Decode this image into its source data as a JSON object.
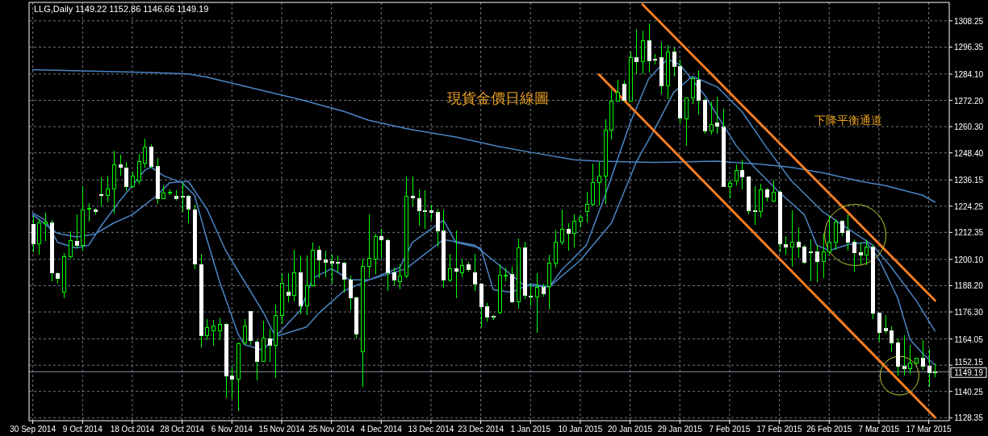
{
  "chart_data": {
    "type": "candlestick",
    "title": "LLG,Daily  1149.22 1152.86 1146.66 1149.19",
    "categories": [
      "30 Sep 2014",
      null,
      null,
      null,
      null,
      null,
      null,
      null,
      "9 Oct 2014",
      null,
      null,
      null,
      null,
      null,
      null,
      null,
      "18 Oct 2014",
      null,
      null,
      null,
      null,
      null,
      null,
      null,
      "28 Oct 2014",
      null,
      null,
      null,
      null,
      null,
      null,
      null,
      "6 Nov 2014",
      null,
      null,
      null,
      null,
      null,
      null,
      null,
      "15 Nov 2014",
      null,
      null,
      null,
      null,
      null,
      null,
      null,
      "25 Nov 2014",
      null,
      null,
      null,
      null,
      null,
      null,
      null,
      "4 Dec 2014",
      null,
      null,
      null,
      null,
      null,
      null,
      null,
      "13 Dec 2014",
      null,
      null,
      null,
      null,
      null,
      null,
      null,
      "23 Dec 2014",
      null,
      null,
      null,
      null,
      null,
      null,
      null,
      "1 Jan 2015",
      null,
      null,
      null,
      null,
      null,
      null,
      null,
      "10 Jan 2015",
      null,
      null,
      null,
      null,
      null,
      null,
      null,
      "20 Jan 2015",
      null,
      null,
      null,
      null,
      null,
      null,
      null,
      "29 Jan 2015",
      null,
      null,
      null,
      null,
      null,
      null,
      null,
      "7 Feb 2015",
      null,
      null,
      null,
      null,
      null,
      null,
      null,
      "17 Feb 2015",
      null,
      null,
      null,
      null,
      null,
      null,
      null,
      "26 Feb 2015",
      null,
      null,
      null,
      null,
      null,
      null,
      null,
      "7 Mar 2015",
      null,
      null,
      null,
      null,
      null,
      null,
      null,
      "17 Mar 2015",
      null
    ],
    "ohlc": [
      [
        1216.0,
        1219.8,
        1203.4,
        1207.2
      ],
      [
        1207.2,
        1218.5,
        1202.2,
        1216.6
      ],
      [
        1216.4,
        1221.4,
        1208.5,
        1216.9
      ],
      [
        1216.6,
        1217.9,
        1190.2,
        1194.0
      ],
      [
        1193.7,
        1194.2,
        1189.0,
        1191.5
      ],
      [
        1185.2,
        1203.1,
        1182.7,
        1201.3
      ],
      [
        1201.5,
        1212.9,
        1200.3,
        1208.5
      ],
      [
        1208.3,
        1220.4,
        1205.3,
        1206.6
      ],
      [
        1206.6,
        1233.2,
        1204.1,
        1222.7
      ],
      [
        1222.8,
        1225.7,
        1217.3,
        1223.1
      ],
      [
        1222.7,
        1223.6,
        1220.4,
        1221.9
      ],
      [
        1229.6,
        1237.4,
        1224.2,
        1229.0
      ],
      [
        1229.2,
        1238.0,
        1226.1,
        1232.0
      ],
      [
        1232.0,
        1249.4,
        1221.0,
        1243.1
      ],
      [
        1243.1,
        1247.7,
        1238.0,
        1241.8
      ],
      [
        1241.5,
        1244.3,
        1231.1,
        1233.2
      ],
      [
        1233.2,
        1239.9,
        1232.7,
        1238.0
      ],
      [
        1235.8,
        1248.1,
        1234.0,
        1244.3
      ],
      [
        1243.7,
        1254.8,
        1241.8,
        1251.2
      ],
      [
        1251.2,
        1252.4,
        1241.2,
        1242.4
      ],
      [
        1242.2,
        1246.2,
        1225.4,
        1227.7
      ],
      [
        1227.7,
        1233.6,
        1227.3,
        1230.2
      ],
      [
        1230.2,
        1231.7,
        1229.2,
        1230.4
      ],
      [
        1228.6,
        1231.5,
        1226.7,
        1227.7
      ],
      [
        1228.7,
        1234.9,
        1221.7,
        1228.6
      ],
      [
        1228.6,
        1229.2,
        1216.6,
        1222.9
      ],
      [
        1222.7,
        1224.8,
        1195.5,
        1198.0
      ],
      [
        1197.8,
        1202.8,
        1160.3,
        1165.7
      ],
      [
        1165.7,
        1172.9,
        1163.5,
        1169.1
      ],
      [
        1167.8,
        1172.6,
        1161.0,
        1170.1
      ],
      [
        1167.6,
        1173.9,
        1163.5,
        1170.6
      ],
      [
        1170.6,
        1171.3,
        1137.4,
        1147.4
      ],
      [
        1147.2,
        1151.5,
        1136.7,
        1145.9
      ],
      [
        1145.9,
        1162.5,
        1131.3,
        1161.9
      ],
      [
        1162.3,
        1173.2,
        1161.5,
        1169.8
      ],
      [
        1176.4,
        1176.6,
        1161.3,
        1163.2
      ],
      [
        1162.8,
        1163.5,
        1145.2,
        1154.0
      ],
      [
        1153.7,
        1172.4,
        1153.5,
        1164.4
      ],
      [
        1164.2,
        1168.8,
        1153.7,
        1161.3
      ],
      [
        1161.3,
        1179.5,
        1146.2,
        1174.5
      ],
      [
        1174.5,
        1193.7,
        1170.7,
        1189.2
      ],
      [
        1185.2,
        1193.7,
        1180.8,
        1183.9
      ],
      [
        1183.9,
        1204.3,
        1181.2,
        1194.2
      ],
      [
        1194.2,
        1201.8,
        1175.1,
        1179.1
      ],
      [
        1178.9,
        1201.8,
        1174.9,
        1188.3
      ],
      [
        1188.3,
        1207.6,
        1187.7,
        1204.3
      ],
      [
        1204.3,
        1206.3,
        1191.5,
        1199.7
      ],
      [
        1199.7,
        1204.1,
        1192.1,
        1198.8
      ],
      [
        1199.0,
        1202.2,
        1189.2,
        1198.5
      ],
      [
        1198.8,
        1201.8,
        1194.2,
        1198.3
      ],
      [
        1198.3,
        1199.0,
        1185.2,
        1191.2
      ],
      [
        1190.8,
        1192.7,
        1177.0,
        1182.7
      ],
      [
        1182.7,
        1183.3,
        1164.4,
        1166.3
      ],
      [
        1158.1,
        1200.3,
        1142.4,
        1196.8
      ],
      [
        1196.8,
        1220.7,
        1191.5,
        1200.5
      ],
      [
        1200.3,
        1211.9,
        1193.4,
        1210.6
      ],
      [
        1210.6,
        1214.1,
        1200.3,
        1209.1
      ],
      [
        1208.8,
        1209.7,
        1185.8,
        1194.2
      ],
      [
        1194.2,
        1196.5,
        1188.3,
        1190.8
      ],
      [
        1190.0,
        1197.8,
        1186.7,
        1192.7
      ],
      [
        1192.7,
        1237.8,
        1191.5,
        1228.8
      ],
      [
        1228.8,
        1237.8,
        1224.2,
        1228.0
      ],
      [
        1227.7,
        1232.0,
        1215.4,
        1222.0
      ],
      [
        1222.2,
        1231.5,
        1214.1,
        1222.0
      ],
      [
        1222.3,
        1224.8,
        1217.9,
        1221.3
      ],
      [
        1221.4,
        1223.2,
        1205.9,
        1213.1
      ],
      [
        1212.9,
        1222.7,
        1187.1,
        1190.8
      ],
      [
        1190.8,
        1202.5,
        1190.0,
        1195.9
      ],
      [
        1195.9,
        1213.1,
        1182.7,
        1194.6
      ],
      [
        1194.2,
        1200.5,
        1192.1,
        1197.5
      ],
      [
        1197.8,
        1199.0,
        1194.6,
        1195.5
      ],
      [
        1194.2,
        1202.5,
        1185.8,
        1189.0
      ],
      [
        1189.0,
        1189.2,
        1169.5,
        1178.6
      ],
      [
        1178.6,
        1180.4,
        1172.0,
        1174.1
      ],
      [
        1174.2,
        1174.9,
        1172.6,
        1174.1
      ],
      [
        1176.1,
        1198.0,
        1175.4,
        1193.0
      ],
      [
        1193.0,
        1196.5,
        1190.2,
        1193.1
      ],
      [
        1193.2,
        1196.8,
        1180.2,
        1180.8
      ],
      [
        1180.8,
        1209.7,
        1177.9,
        1205.3
      ],
      [
        1205.3,
        1208.1,
        1182.0,
        1183.9
      ],
      [
        1183.4,
        1189.0,
        1178.9,
        1183.2
      ],
      [
        1183.2,
        1194.0,
        1166.9,
        1187.4
      ],
      [
        1187.4,
        1189.0,
        1183.3,
        1184.6
      ],
      [
        1187.7,
        1202.2,
        1177.4,
        1198.4
      ],
      [
        1198.4,
        1213.5,
        1196.5,
        1208.1
      ],
      [
        1208.1,
        1222.7,
        1206.6,
        1213.9
      ],
      [
        1213.9,
        1216.4,
        1204.1,
        1211.9
      ],
      [
        1211.9,
        1220.4,
        1205.6,
        1217.3
      ],
      [
        1217.3,
        1220.4,
        1214.8,
        1219.4
      ],
      [
        1221.7,
        1230.7,
        1216.9,
        1225.2
      ],
      [
        1225.2,
        1243.7,
        1224.2,
        1234.9
      ],
      [
        1234.9,
        1244.1,
        1224.4,
        1238.0
      ],
      [
        1238.0,
        1263.8,
        1225.4,
        1258.8
      ],
      [
        1258.8,
        1277.3,
        1254.4,
        1271.7
      ],
      [
        1272.0,
        1281.4,
        1271.7,
        1275.8
      ],
      [
        1279.5,
        1281.1,
        1272.0,
        1272.3
      ],
      [
        1272.0,
        1294.4,
        1271.7,
        1291.5
      ],
      [
        1291.5,
        1304.7,
        1284.0,
        1289.6
      ],
      [
        1289.6,
        1303.7,
        1284.0,
        1299.1
      ],
      [
        1299.1,
        1307.0,
        1284.8,
        1290.2
      ],
      [
        1290.9,
        1293.4,
        1288.6,
        1290.4
      ],
      [
        1291.5,
        1298.7,
        1275.1,
        1278.9
      ],
      [
        1278.9,
        1297.2,
        1272.6,
        1294.0
      ],
      [
        1294.0,
        1296.2,
        1283.1,
        1287.7
      ],
      [
        1287.5,
        1290.6,
        1261.9,
        1264.2
      ],
      [
        1263.8,
        1273.5,
        1251.6,
        1273.3
      ],
      [
        1273.3,
        1283.1,
        1270.5,
        1282.1
      ],
      [
        1281.4,
        1285.8,
        1265.7,
        1272.3
      ],
      [
        1272.3,
        1273.3,
        1256.9,
        1258.4
      ],
      [
        1258.2,
        1271.7,
        1256.6,
        1261.3
      ],
      [
        1261.9,
        1273.9,
        1256.9,
        1260.4
      ],
      [
        1260.0,
        1268.2,
        1233.0,
        1233.2
      ],
      [
        1233.2,
        1236.1,
        1227.7,
        1234.5
      ],
      [
        1235.5,
        1243.1,
        1233.6,
        1240.5
      ],
      [
        1240.5,
        1245.3,
        1231.7,
        1237.4
      ],
      [
        1237.4,
        1237.4,
        1220.4,
        1222.3
      ],
      [
        1222.3,
        1233.2,
        1215.6,
        1222.2
      ],
      [
        1221.9,
        1234.5,
        1218.9,
        1231.7
      ],
      [
        1231.7,
        1232.7,
        1226.5,
        1228.2
      ],
      [
        1226.5,
        1236.1,
        1226.1,
        1230.7
      ],
      [
        1230.7,
        1231.5,
        1203.4,
        1207.2
      ],
      [
        1206.8,
        1210.6,
        1202.2,
        1205.6
      ],
      [
        1205.6,
        1222.3,
        1196.8,
        1208.1
      ],
      [
        1208.1,
        1214.8,
        1200.9,
        1205.9
      ],
      [
        1205.9,
        1206.6,
        1197.8,
        1198.8
      ],
      [
        1203.5,
        1209.3,
        1190.2,
        1203.3
      ],
      [
        1203.4,
        1206.6,
        1190.0,
        1199.0
      ],
      [
        1199.0,
        1211.6,
        1191.5,
        1203.4
      ],
      [
        1203.4,
        1220.2,
        1202.2,
        1208.1
      ],
      [
        1208.1,
        1218.5,
        1204.3,
        1216.9
      ],
      [
        1217.3,
        1218.1,
        1210.6,
        1212.2
      ],
      [
        1213.1,
        1220.7,
        1204.1,
        1207.8
      ],
      [
        1207.8,
        1209.3,
        1194.6,
        1203.1
      ],
      [
        1203.1,
        1207.8,
        1197.8,
        1202.2
      ],
      [
        1202.2,
        1209.1,
        1197.5,
        1205.9
      ],
      [
        1205.6,
        1206.6,
        1172.9,
        1175.7
      ],
      [
        1175.7,
        1175.7,
        1162.8,
        1166.9
      ],
      [
        1168.8,
        1174.9,
        1166.3,
        1167.8
      ],
      [
        1167.8,
        1169.8,
        1158.5,
        1162.3
      ],
      [
        1162.3,
        1164.4,
        1147.4,
        1151.5
      ],
      [
        1151.6,
        1165.7,
        1147.4,
        1150.6
      ],
      [
        1150.6,
        1161.3,
        1148.1,
        1153.1
      ],
      [
        1153.1,
        1155.6,
        1152.7,
        1155.4
      ],
      [
        1155.2,
        1163.5,
        1150.0,
        1151.8
      ],
      [
        1151.8,
        1159.4,
        1142.2,
        1148.9
      ],
      [
        1149.22,
        1152.86,
        1146.66,
        1149.19
      ]
    ],
    "series": [
      {
        "type": "line",
        "color": "#4a86c4",
        "values": [
          1286.1,
          null,
          null,
          null,
          null,
          null,
          null,
          null,
          null,
          null,
          null,
          null,
          null,
          null,
          null,
          null,
          null,
          null,
          null,
          1284.8,
          null,
          null,
          null,
          null,
          null,
          1284.2,
          null,
          null,
          1282.7,
          null,
          null,
          null,
          null,
          null,
          null,
          1278.0,
          null,
          null,
          null,
          null,
          null,
          null,
          null,
          1272.6,
          null,
          null,
          null,
          null,
          null,
          null,
          1267.2,
          null,
          null,
          null,
          1263.2,
          null,
          null,
          null,
          null,
          null,
          1259.4,
          null,
          null,
          null,
          null,
          null,
          null,
          null,
          1255.6,
          null,
          null,
          null,
          null,
          null,
          null,
          1251.2,
          null,
          null,
          null,
          null,
          1248.7,
          null,
          null,
          null,
          null,
          null,
          null,
          1245.3,
          null,
          null,
          null,
          1244.6,
          null,
          null,
          null,
          null,
          null,
          null,
          null,
          null,
          1244.1,
          null,
          null,
          null,
          null,
          null,
          null,
          null,
          null,
          null,
          1244.6,
          null,
          null,
          null,
          null,
          null,
          null,
          1243.3,
          null,
          null,
          null,
          null,
          1241.8,
          null,
          null,
          null,
          null,
          1239.3,
          null,
          null,
          null,
          null,
          null,
          1235.5,
          null,
          null,
          null,
          1233.6,
          null,
          null,
          null,
          null,
          null,
          1229.2,
          null,
          1226.1
        ]
      },
      {
        "type": "line",
        "color": "#4a86c4",
        "values": [
          1220.4,
          null,
          1216.0,
          null,
          1211.9,
          null,
          null,
          1210.3,
          null,
          null,
          1211.6,
          null,
          null,
          1216.6,
          null,
          null,
          1220.4,
          null,
          null,
          null,
          1229.2,
          null,
          1234.9,
          null,
          null,
          1235.5,
          null,
          null,
          1222.9,
          null,
          null,
          1204.1,
          null,
          null,
          1190.2,
          null,
          null,
          1176.4,
          null,
          1165.1,
          null,
          null,
          null,
          null,
          1169.5,
          null,
          1175.8,
          null,
          null,
          null,
          1185.8,
          null,
          null,
          null,
          1190.8,
          null,
          null,
          null,
          null,
          null,
          1195.9,
          null,
          null,
          null,
          null,
          null,
          1209.1,
          null,
          null,
          null,
          null,
          1206.6,
          null,
          null,
          1199.7,
          null,
          null,
          null,
          null,
          1188.3,
          null,
          null,
          null,
          1187.7,
          null,
          null,
          null,
          null,
          1199.7,
          null,
          null,
          null,
          null,
          1216.6,
          null,
          null,
          null,
          1244.3,
          null,
          null,
          1259.4,
          null,
          null,
          1275.8,
          null,
          null,
          1283.1,
          null,
          null,
          null,
          1278.3,
          null,
          null,
          null,
          1267.0,
          null,
          null,
          null,
          1250.6,
          null,
          null,
          null,
          1235.5,
          null,
          null,
          null,
          null,
          1221.7,
          null,
          null,
          null,
          1214.1,
          null,
          null,
          null,
          1206.6,
          null,
          null,
          1196.5,
          null,
          null,
          null,
          1181.4,
          null,
          null,
          1167.6
        ]
      },
      {
        "type": "line",
        "color": "#4a86c4",
        "values": [
          1221.1,
          null,
          1217.9,
          null,
          1207.8,
          null,
          null,
          1205.3,
          null,
          1206.6,
          null,
          1215.4,
          null,
          null,
          1226.7,
          null,
          null,
          null,
          1240.5,
          1242.0,
          null,
          1238.0,
          null,
          null,
          1234.9,
          null,
          1229.2,
          null,
          1209.1,
          null,
          1190.2,
          null,
          null,
          1166.3,
          1161.5,
          null,
          null,
          1159.0,
          null,
          1165.1,
          null,
          null,
          null,
          1177.0,
          null,
          1191.5,
          null,
          null,
          1195.9,
          null,
          null,
          1190.8,
          null,
          null,
          1190.8,
          null,
          null,
          null,
          null,
          1196.5,
          null,
          1207.8,
          null,
          null,
          null,
          null,
          1217.9,
          null,
          1207.8,
          null,
          null,
          null,
          1205.3,
          null,
          1186.4,
          null,
          null,
          1185.2,
          null,
          null,
          1189.0,
          null,
          null,
          1187.7,
          null,
          1195.3,
          null,
          null,
          null,
          1206.6,
          null,
          null,
          1229.2,
          null,
          null,
          null,
          1261.9,
          null,
          null,
          1282.1,
          null,
          null,
          1290.9,
          null,
          1288.4,
          null,
          null,
          null,
          1274.5,
          null,
          null,
          null,
          null,
          1251.9,
          null,
          null,
          1241.8,
          null,
          null,
          null,
          1230.5,
          null,
          null,
          null,
          1220.4,
          null,
          1206.6,
          null,
          1204.1,
          null,
          null,
          1206.8,
          null,
          null,
          1207.8,
          null,
          1200.3,
          null,
          null,
          1182.7,
          null,
          1163.8,
          null,
          1157.5,
          null,
          1152.2
        ]
      },
      {
        "type": "line",
        "color": "#f57c1f",
        "values": [
          null,
          null,
          null,
          null,
          null,
          null,
          null,
          null,
          null,
          null,
          null,
          null,
          null,
          null,
          null,
          null,
          null,
          null,
          null,
          null,
          null,
          null,
          null,
          null,
          null,
          null,
          null,
          null,
          null,
          null,
          null,
          null,
          null,
          null,
          null,
          null,
          null,
          null,
          null,
          null,
          null,
          null,
          null,
          null,
          null,
          null,
          null,
          null,
          null,
          null,
          null,
          null,
          null,
          null,
          null,
          null,
          null,
          null,
          null,
          null,
          null,
          null,
          null,
          null,
          null,
          null,
          null,
          null,
          null,
          null,
          null,
          null,
          null,
          null,
          null,
          null,
          null,
          null,
          null,
          null,
          null,
          null,
          null,
          null,
          null,
          null,
          null,
          null,
          null,
          null,
          null,
          null,
          null,
          null,
          null,
          null,
          null,
          null,
          1315.7,
          null,
          null,
          null,
          null,
          null,
          null,
          null,
          null,
          null,
          null,
          null,
          null,
          null,
          null,
          null,
          null,
          null,
          null,
          null,
          null,
          null,
          null,
          null,
          null,
          null,
          null,
          null,
          null,
          null,
          null,
          null,
          null,
          null,
          null,
          null,
          null,
          null,
          null,
          null,
          null,
          null,
          null,
          null,
          null,
          null,
          null,
          1181.5
        ]
      },
      {
        "type": "line",
        "color": "#f57c1f",
        "values": [
          null,
          null,
          null,
          null,
          null,
          null,
          null,
          null,
          null,
          null,
          null,
          null,
          null,
          null,
          null,
          null,
          null,
          null,
          null,
          null,
          null,
          null,
          null,
          null,
          null,
          null,
          null,
          null,
          null,
          null,
          null,
          null,
          null,
          null,
          null,
          null,
          null,
          null,
          null,
          null,
          null,
          null,
          null,
          null,
          null,
          null,
          null,
          null,
          null,
          null,
          null,
          null,
          null,
          null,
          null,
          null,
          null,
          null,
          null,
          null,
          null,
          null,
          null,
          null,
          null,
          null,
          null,
          null,
          null,
          null,
          null,
          null,
          null,
          null,
          null,
          null,
          null,
          null,
          null,
          null,
          null,
          null,
          null,
          null,
          null,
          null,
          null,
          null,
          null,
          null,
          null,
          1283.9,
          null,
          null,
          null,
          null,
          null,
          null,
          null,
          null,
          null,
          null,
          null,
          null,
          null,
          null,
          null,
          null,
          null,
          null,
          null,
          null,
          null,
          null,
          null,
          null,
          null,
          null,
          null,
          null,
          null,
          null,
          null,
          null,
          null,
          null,
          null,
          null,
          null,
          null,
          null,
          null,
          null,
          null,
          null,
          null,
          null,
          null,
          null,
          null,
          null,
          null,
          null,
          null,
          null,
          1128.5
        ]
      }
    ],
    "ylim": [
      1127.0,
      1316.6
    ],
    "yticks": [
      {
        "value": 1308.25,
        "label": "1308.25"
      },
      {
        "value": 1296.35,
        "label": "1296.35"
      },
      {
        "value": 1284.1,
        "label": "1284.10"
      },
      {
        "value": 1272.2,
        "label": "1272.20"
      },
      {
        "value": 1260.3,
        "label": "1260.30"
      },
      {
        "value": 1248.4,
        "label": "1248.40"
      },
      {
        "value": 1236.15,
        "label": "1236.15"
      },
      {
        "value": 1224.25,
        "label": "1224.25"
      },
      {
        "value": 1212.35,
        "label": "1212.35"
      },
      {
        "value": 1200.1,
        "label": "1200.10"
      },
      {
        "value": 1188.2,
        "label": "1188.20"
      },
      {
        "value": 1176.3,
        "label": "1176.30"
      },
      {
        "value": 1164.05,
        "label": "1164.05"
      },
      {
        "value": 1152.15,
        "label": "1152.15"
      },
      {
        "value": 1140.25,
        "label": "1140.25"
      },
      {
        "value": 1128.35,
        "label": "1128.35"
      }
    ],
    "ref_lines": [
      {
        "axis": "y",
        "value": 1149.19,
        "label": "1149.19",
        "color": "#8796a8"
      }
    ],
    "annotations": [
      "現貨金價日線圖",
      "下降平衡通道"
    ],
    "grid": true
  }
}
